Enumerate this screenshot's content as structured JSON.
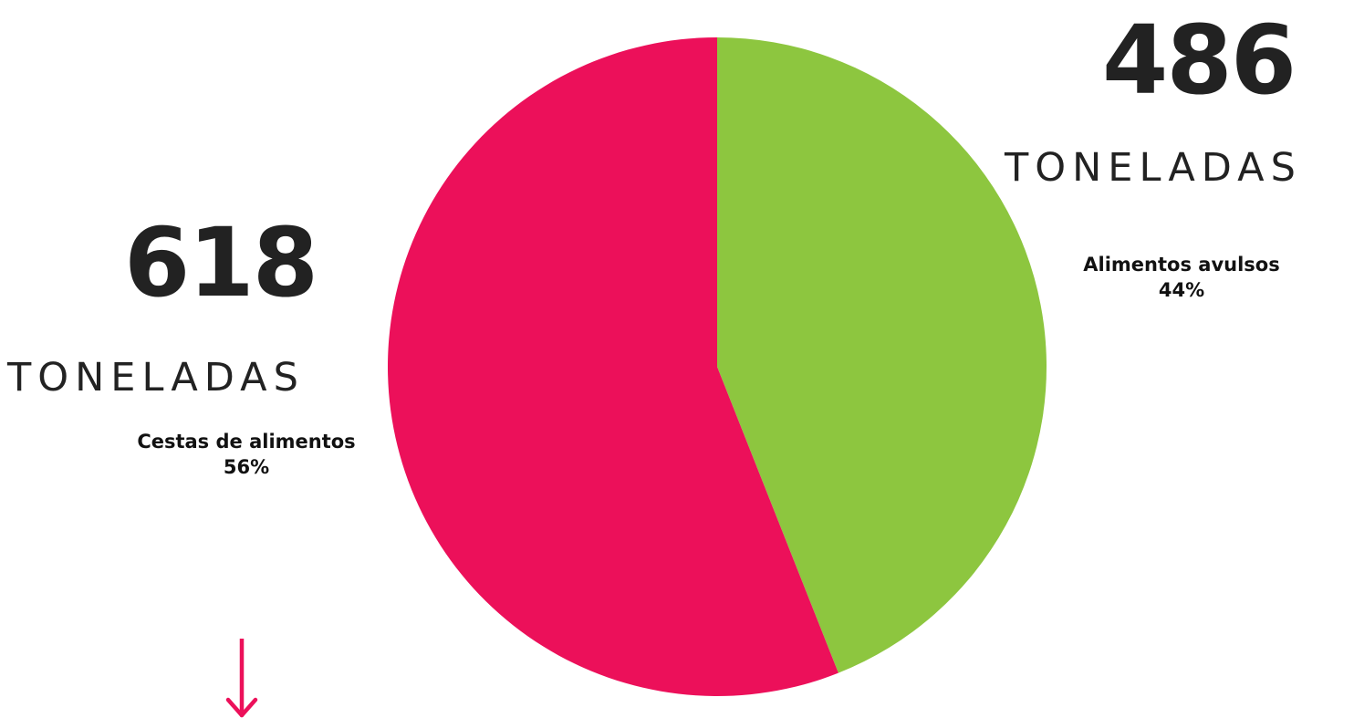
{
  "chart_data": {
    "type": "pie",
    "title": "",
    "slices": [
      {
        "name": "Alimentos avulsos",
        "value": 44,
        "percent_label": "44%",
        "amount": "486",
        "unit": "TONELADAS",
        "color": "#8dc63f"
      },
      {
        "name": "Cestas de alimentos",
        "value": 56,
        "percent_label": "56%",
        "amount": "618",
        "unit": "TONELADAS",
        "color": "#ec105a"
      }
    ],
    "start_angle": "top (12 o'clock), clockwise",
    "legend": "none"
  },
  "decoration": {
    "arrow": "down-arrow-icon",
    "arrow_color": "#ec105a"
  }
}
